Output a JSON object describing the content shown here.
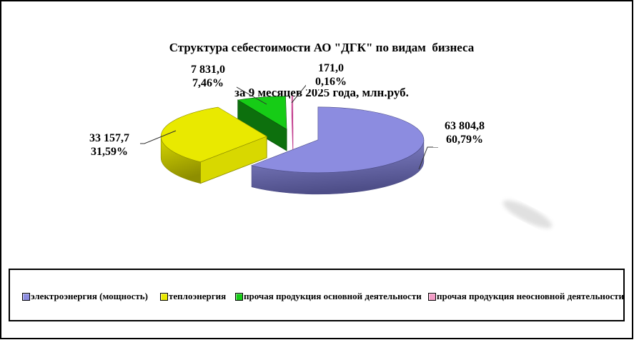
{
  "title": {
    "line1": "Структура себестоимости АО \"ДГК\" по видам  бизнеса",
    "line2": "за 9 месяцев 2025 года, млн.руб."
  },
  "chart_data": {
    "type": "pie",
    "style": "3d-exploded",
    "start_angle_deg": 0,
    "direction": "clockwise",
    "unit": "млн.руб.",
    "legend_position": "bottom",
    "slices": [
      {
        "name": "электроэнергия (мощность)",
        "value": 63804.8,
        "value_label": "63 804,8",
        "percent": 60.79,
        "percent_label": "60,79%",
        "color": "#8C8CE0",
        "side_color": "#4E4E88",
        "cut_color": "#8A8AD2"
      },
      {
        "name": "теплоэнергия",
        "value": 33157.7,
        "value_label": "33 157,7",
        "percent": 31.59,
        "percent_label": "31,59%",
        "color": "#E9E900",
        "side_color": "#8E8E00",
        "cut_color": "#D8D800"
      },
      {
        "name": "прочая продукция основной деятельности",
        "value": 7831.0,
        "value_label": "7 831,0",
        "percent": 7.46,
        "percent_label": "7,46%",
        "color": "#16CC16",
        "side_color": "#085808",
        "cut_color": "#0D700D"
      },
      {
        "name": "прочая продукция неосновной деятельности",
        "value": 171.0,
        "value_label": "171,0",
        "percent": 0.16,
        "percent_label": "0,16%",
        "color": "#F29CC6",
        "side_color": "#C23E8E",
        "cut_color": "#F4A8CC"
      }
    ]
  }
}
